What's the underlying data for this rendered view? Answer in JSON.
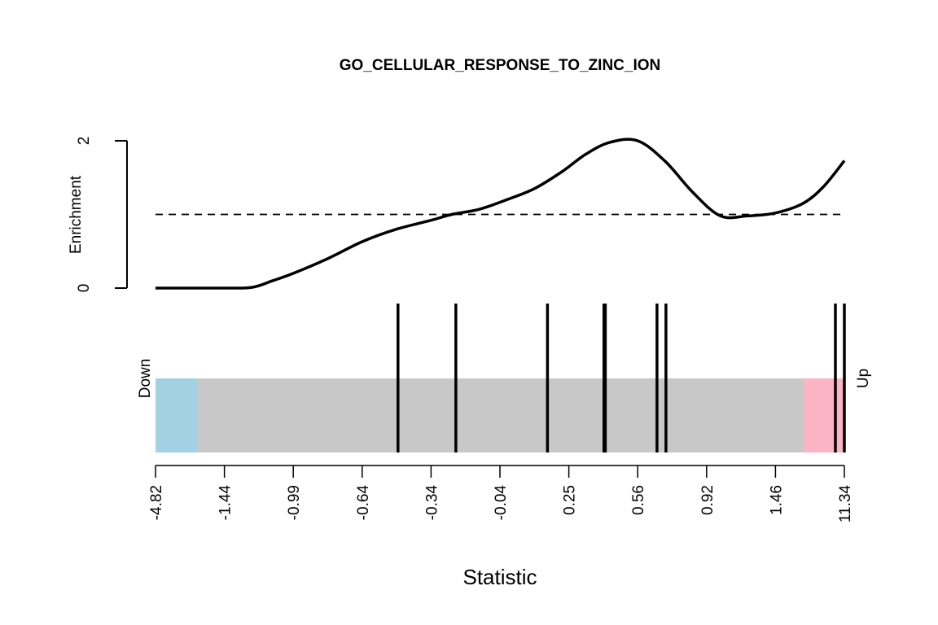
{
  "chart_data": {
    "type": "line",
    "title": "GO_CELLULAR_RESPONSE_TO_ZINC_ION",
    "ylabel": "Enrichment",
    "xlabel": "Statistic",
    "y_ticks": [
      "0",
      "2"
    ],
    "ylim": [
      0,
      2
    ],
    "reference_line": 1,
    "x_tick_labels": [
      "-4.82",
      "-1.44",
      "-0.99",
      "-0.64",
      "-0.34",
      "-0.04",
      "0.25",
      "0.56",
      "0.92",
      "1.46",
      "11.34"
    ],
    "x_rank_fraction_ticks": [
      0,
      0.1,
      0.2,
      0.3,
      0.4,
      0.5,
      0.6,
      0.7,
      0.8,
      0.9,
      1.0
    ],
    "enrichment_curve": {
      "x_rank_fraction": [
        0,
        0.05,
        0.1,
        0.14,
        0.17,
        0.2,
        0.25,
        0.3,
        0.35,
        0.4,
        0.43,
        0.47,
        0.51,
        0.55,
        0.59,
        0.625,
        0.66,
        0.7,
        0.74,
        0.78,
        0.82,
        0.86,
        0.9,
        0.94,
        0.97,
        1.0
      ],
      "y": [
        0,
        0,
        0,
        0.01,
        0.1,
        0.2,
        0.4,
        0.63,
        0.8,
        0.92,
        1.0,
        1.07,
        1.2,
        1.35,
        1.58,
        1.82,
        1.98,
        2.0,
        1.72,
        1.3,
        0.98,
        0.98,
        1.02,
        1.15,
        1.38,
        1.73
      ]
    },
    "gene_ranks_fraction": [
      0.352,
      0.436,
      0.569,
      0.651,
      0.652,
      0.653,
      0.728,
      0.741,
      0.987,
      1.0
    ],
    "rank_bar": {
      "down_label": "Down",
      "up_label": "Up",
      "down_color": "#a2d1e3",
      "middle_color": "#c8c8c8",
      "up_color": "#fbb4c4",
      "down_fraction": 0.06,
      "up_fraction": 0.06
    },
    "grid": false
  }
}
